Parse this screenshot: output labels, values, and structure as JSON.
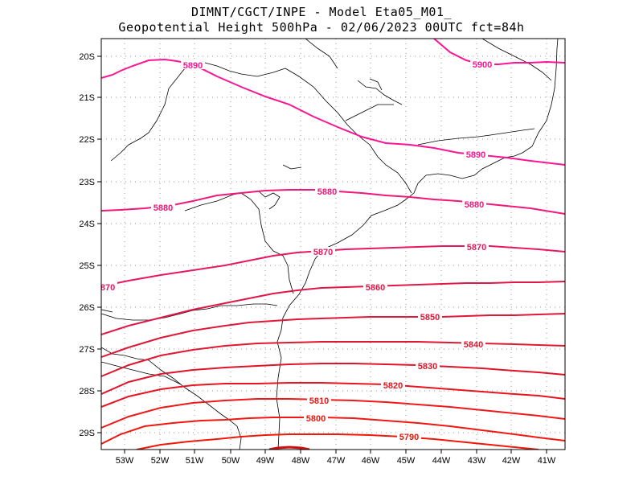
{
  "header": {
    "line1": "DIMNT/CGCT/INPE -   Model Eta05_M01_",
    "line2": "Geopotential Height 500hPa -  02/06/2023 00UTC fct=84h"
  },
  "axes": {
    "lat_labels": [
      "20S",
      "21S",
      "22S",
      "23S",
      "24S",
      "25S",
      "26S",
      "27S",
      "28S",
      "29S"
    ],
    "lon_labels": [
      "53W",
      "52W",
      "51W",
      "50W",
      "49W",
      "48W",
      "47W",
      "46W",
      "45W",
      "44W",
      "43W",
      "42W",
      "41W"
    ]
  },
  "contours": [
    {
      "value": "5900",
      "color": "#ff1493"
    },
    {
      "value": "5890",
      "color": "#ff1493"
    },
    {
      "value": "5880",
      "color": "#f01878"
    },
    {
      "value": "5870",
      "color": "#e81860"
    },
    {
      "value": "5860",
      "color": "#e01848"
    },
    {
      "value": "5850",
      "color": "#e01838"
    },
    {
      "value": "5840",
      "color": "#e01830"
    },
    {
      "value": "5830",
      "color": "#e01428"
    },
    {
      "value": "5820",
      "color": "#e81420"
    },
    {
      "value": "5810",
      "color": "#f01818"
    },
    {
      "value": "5800",
      "color": "#f01810"
    },
    {
      "value": "5790",
      "color": "#f01808"
    }
  ],
  "colors": {
    "frame": "#000000",
    "grid": "#999999",
    "coast": "#000000"
  }
}
